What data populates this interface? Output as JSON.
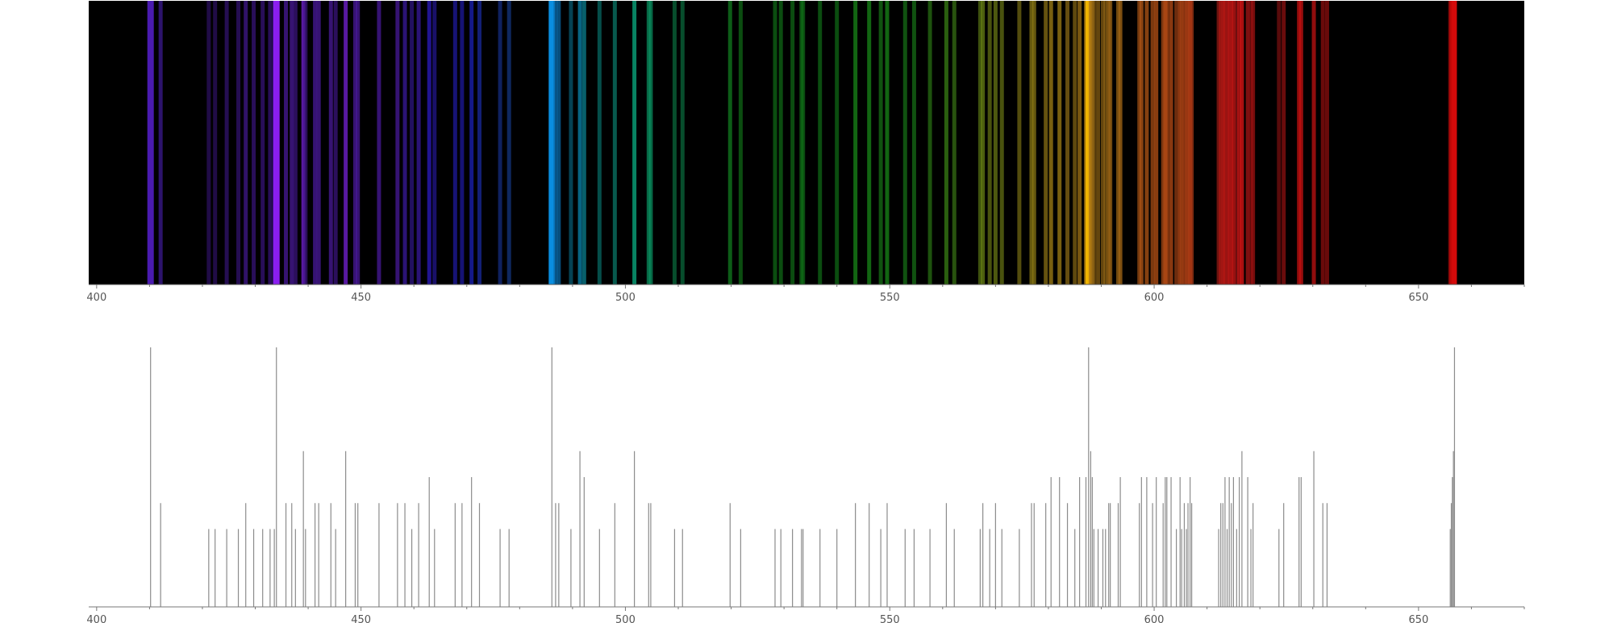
{
  "chart_data": [
    {
      "type": "spectrum",
      "title": "",
      "xlabel": "",
      "ylabel": "",
      "xlim": [
        398.5,
        670
      ],
      "background": "#000000",
      "x_ticks": [
        400,
        450,
        500,
        550,
        600,
        650
      ],
      "lines": [
        {
          "wl": 410.2,
          "i": 1.0,
          "color": "#4a1bb0",
          "w": 1.6
        },
        {
          "wl": 412.1,
          "i": 0.4,
          "color": "#3d1a94",
          "w": 1
        },
        {
          "wl": 421.2,
          "i": 0.3,
          "color": "#2e1166",
          "w": 1
        },
        {
          "wl": 422.4,
          "i": 0.3,
          "color": "#2e1166",
          "w": 1
        },
        {
          "wl": 424.6,
          "i": 0.3,
          "color": "#361478",
          "w": 1
        },
        {
          "wl": 426.8,
          "i": 0.3,
          "color": "#361478",
          "w": 1
        },
        {
          "wl": 428.2,
          "i": 0.4,
          "color": "#42188e",
          "w": 1
        },
        {
          "wl": 429.7,
          "i": 0.3,
          "color": "#3b1582",
          "w": 1
        },
        {
          "wl": 431.4,
          "i": 0.3,
          "color": "#3b1582",
          "w": 1
        },
        {
          "wl": 432.8,
          "i": 0.3,
          "color": "#3b1582",
          "w": 1
        },
        {
          "wl": 433.6,
          "i": 0.3,
          "color": "#3b1582",
          "w": 1
        },
        {
          "wl": 434.0,
          "i": 1.0,
          "color": "#8a1ef0",
          "w": 1.6
        },
        {
          "wl": 435.8,
          "i": 0.4,
          "color": "#4a1a9c",
          "w": 1
        },
        {
          "wl": 436.9,
          "i": 0.4,
          "color": "#4a1a9c",
          "w": 1
        },
        {
          "wl": 437.6,
          "i": 0.3,
          "color": "#3f1686",
          "w": 1
        },
        {
          "wl": 439.1,
          "i": 0.6,
          "color": "#6a1fc4",
          "w": 1
        },
        {
          "wl": 439.5,
          "i": 0.3,
          "color": "#3f1686",
          "w": 1
        },
        {
          "wl": 441.3,
          "i": 0.4,
          "color": "#4a1a9c",
          "w": 1
        },
        {
          "wl": 442.0,
          "i": 0.4,
          "color": "#4a1a9c",
          "w": 1
        },
        {
          "wl": 444.3,
          "i": 0.4,
          "color": "#4a1a9c",
          "w": 1
        },
        {
          "wl": 445.2,
          "i": 0.3,
          "color": "#3f1686",
          "w": 1
        },
        {
          "wl": 447.1,
          "i": 0.6,
          "color": "#6a1fc4",
          "w": 1
        },
        {
          "wl": 448.9,
          "i": 0.4,
          "color": "#4a1a9c",
          "w": 1
        },
        {
          "wl": 449.4,
          "i": 0.4,
          "color": "#4a1a9c",
          "w": 1
        },
        {
          "wl": 453.4,
          "i": 0.4,
          "color": "#4a1a9c",
          "w": 1
        },
        {
          "wl": 456.9,
          "i": 0.4,
          "color": "#4a1a9c",
          "w": 1
        },
        {
          "wl": 458.3,
          "i": 0.4,
          "color": "#3a1aa0",
          "w": 1
        },
        {
          "wl": 459.6,
          "i": 0.3,
          "color": "#32188c",
          "w": 1
        },
        {
          "wl": 460.9,
          "i": 0.4,
          "color": "#3a1aa0",
          "w": 1
        },
        {
          "wl": 462.9,
          "i": 0.5,
          "color": "#2a1ab8",
          "w": 1
        },
        {
          "wl": 463.9,
          "i": 0.3,
          "color": "#241896",
          "w": 1
        },
        {
          "wl": 467.8,
          "i": 0.4,
          "color": "#1e1aa0",
          "w": 1
        },
        {
          "wl": 469.1,
          "i": 0.4,
          "color": "#1e1aa0",
          "w": 1
        },
        {
          "wl": 470.9,
          "i": 0.5,
          "color": "#1a20b0",
          "w": 1
        },
        {
          "wl": 472.4,
          "i": 0.4,
          "color": "#1a2aa0",
          "w": 1
        },
        {
          "wl": 476.3,
          "i": 0.3,
          "color": "#16308a",
          "w": 1
        },
        {
          "wl": 478.0,
          "i": 0.3,
          "color": "#163a8a",
          "w": 1
        },
        {
          "wl": 486.1,
          "i": 1.0,
          "color": "#0a8ee0",
          "w": 1.6
        },
        {
          "wl": 486.8,
          "i": 0.4,
          "color": "#0a6aa8",
          "w": 1
        },
        {
          "wl": 487.4,
          "i": 0.4,
          "color": "#0a6aa8",
          "w": 1
        },
        {
          "wl": 489.7,
          "i": 0.3,
          "color": "#08607a",
          "w": 1
        },
        {
          "wl": 491.4,
          "i": 0.6,
          "color": "#0a7aa0",
          "w": 1
        },
        {
          "wl": 492.2,
          "i": 0.5,
          "color": "#0a7a8a",
          "w": 1
        },
        {
          "wl": 495.1,
          "i": 0.3,
          "color": "#08706a",
          "w": 1
        },
        {
          "wl": 498.0,
          "i": 0.4,
          "color": "#0a7a6a",
          "w": 1
        },
        {
          "wl": 501.7,
          "i": 0.6,
          "color": "#0aa078",
          "w": 1
        },
        {
          "wl": 504.4,
          "i": 0.4,
          "color": "#0a9060",
          "w": 1
        },
        {
          "wl": 504.8,
          "i": 0.4,
          "color": "#0a9060",
          "w": 1
        },
        {
          "wl": 509.3,
          "i": 0.3,
          "color": "#0a7040",
          "w": 1
        },
        {
          "wl": 510.8,
          "i": 0.3,
          "color": "#0a7040",
          "w": 1
        },
        {
          "wl": 519.8,
          "i": 0.4,
          "color": "#128020",
          "w": 1
        },
        {
          "wl": 521.8,
          "i": 0.3,
          "color": "#107018",
          "w": 1
        },
        {
          "wl": 528.3,
          "i": 0.3,
          "color": "#107018",
          "w": 1
        },
        {
          "wl": 529.4,
          "i": 0.3,
          "color": "#107018",
          "w": 1
        },
        {
          "wl": 531.6,
          "i": 0.3,
          "color": "#107018",
          "w": 1
        },
        {
          "wl": 533.3,
          "i": 0.3,
          "color": "#107018",
          "w": 1
        },
        {
          "wl": 533.6,
          "i": 0.3,
          "color": "#107018",
          "w": 1
        },
        {
          "wl": 536.8,
          "i": 0.3,
          "color": "#107018",
          "w": 1
        },
        {
          "wl": 540.0,
          "i": 0.3,
          "color": "#107018",
          "w": 1
        },
        {
          "wl": 543.5,
          "i": 0.4,
          "color": "#188a18",
          "w": 1
        },
        {
          "wl": 546.1,
          "i": 0.4,
          "color": "#188a18",
          "w": 1
        },
        {
          "wl": 548.3,
          "i": 0.3,
          "color": "#187818",
          "w": 1
        },
        {
          "wl": 549.5,
          "i": 0.4,
          "color": "#188a18",
          "w": 1
        },
        {
          "wl": 552.9,
          "i": 0.3,
          "color": "#187818",
          "w": 1
        },
        {
          "wl": 554.6,
          "i": 0.3,
          "color": "#187818",
          "w": 1
        },
        {
          "wl": 557.6,
          "i": 0.3,
          "color": "#2a7814",
          "w": 1
        },
        {
          "wl": 560.7,
          "i": 0.4,
          "color": "#3a8214",
          "w": 1
        },
        {
          "wl": 562.2,
          "i": 0.3,
          "color": "#3a7814",
          "w": 1
        },
        {
          "wl": 567.1,
          "i": 0.3,
          "color": "#5a7814",
          "w": 1
        },
        {
          "wl": 567.6,
          "i": 0.4,
          "color": "#6a8214",
          "w": 1
        },
        {
          "wl": 568.9,
          "i": 0.3,
          "color": "#6a7814",
          "w": 1
        },
        {
          "wl": 570.0,
          "i": 0.4,
          "color": "#6a7814",
          "w": 1
        },
        {
          "wl": 571.2,
          "i": 0.3,
          "color": "#6a7814",
          "w": 1
        },
        {
          "wl": 574.5,
          "i": 0.3,
          "color": "#7a7014",
          "w": 1
        },
        {
          "wl": 576.8,
          "i": 0.4,
          "color": "#8a7814",
          "w": 1
        },
        {
          "wl": 577.3,
          "i": 0.4,
          "color": "#8a7814",
          "w": 1
        },
        {
          "wl": 579.5,
          "i": 0.4,
          "color": "#8a7014",
          "w": 1
        },
        {
          "wl": 580.5,
          "i": 0.5,
          "color": "#9a7a14",
          "w": 1
        },
        {
          "wl": 582.1,
          "i": 0.5,
          "color": "#9a7a14",
          "w": 1
        },
        {
          "wl": 583.6,
          "i": 0.4,
          "color": "#8a6a14",
          "w": 1
        },
        {
          "wl": 585.0,
          "i": 0.3,
          "color": "#8a6a14",
          "w": 1
        },
        {
          "wl": 585.9,
          "i": 0.5,
          "color": "#9a7014",
          "w": 1
        },
        {
          "wl": 587.1,
          "i": 0.5,
          "color": "#a07214",
          "w": 1
        },
        {
          "wl": 587.6,
          "i": 1.0,
          "color": "#f0b400",
          "w": 1.6
        },
        {
          "wl": 588.0,
          "i": 0.6,
          "color": "#b07814",
          "w": 1
        },
        {
          "wl": 588.3,
          "i": 0.5,
          "color": "#a07014",
          "w": 1
        },
        {
          "wl": 588.6,
          "i": 0.3,
          "color": "#906414",
          "w": 1
        },
        {
          "wl": 589.4,
          "i": 0.3,
          "color": "#906414",
          "w": 1
        },
        {
          "wl": 590.3,
          "i": 0.3,
          "color": "#906414",
          "w": 1
        },
        {
          "wl": 590.8,
          "i": 0.3,
          "color": "#906414",
          "w": 1
        },
        {
          "wl": 591.4,
          "i": 0.4,
          "color": "#9a6414",
          "w": 1
        },
        {
          "wl": 591.7,
          "i": 0.4,
          "color": "#9a6414",
          "w": 1
        },
        {
          "wl": 593.2,
          "i": 0.4,
          "color": "#9a6414",
          "w": 1
        },
        {
          "wl": 593.6,
          "i": 0.5,
          "color": "#a06414",
          "w": 1
        },
        {
          "wl": 597.2,
          "i": 0.4,
          "color": "#a05014",
          "w": 1
        },
        {
          "wl": 597.6,
          "i": 0.5,
          "color": "#aa5214",
          "w": 1
        },
        {
          "wl": 598.6,
          "i": 0.5,
          "color": "#aa5214",
          "w": 1
        },
        {
          "wl": 599.7,
          "i": 0.4,
          "color": "#aa4e14",
          "w": 1
        },
        {
          "wl": 600.4,
          "i": 0.5,
          "color": "#b04e14",
          "w": 1
        },
        {
          "wl": 601.7,
          "i": 0.4,
          "color": "#aa4a14",
          "w": 1
        },
        {
          "wl": 602.1,
          "i": 0.5,
          "color": "#b04a14",
          "w": 1
        },
        {
          "wl": 602.4,
          "i": 0.5,
          "color": "#b04a14",
          "w": 1
        },
        {
          "wl": 603.2,
          "i": 0.5,
          "color": "#b04814",
          "w": 1
        },
        {
          "wl": 604.2,
          "i": 0.3,
          "color": "#a04014",
          "w": 1
        },
        {
          "wl": 604.9,
          "i": 0.5,
          "color": "#b04414",
          "w": 1
        },
        {
          "wl": 605.2,
          "i": 0.3,
          "color": "#a04014",
          "w": 1
        },
        {
          "wl": 605.7,
          "i": 0.4,
          "color": "#aa4014",
          "w": 1
        },
        {
          "wl": 606.1,
          "i": 0.3,
          "color": "#a03c14",
          "w": 1
        },
        {
          "wl": 606.4,
          "i": 0.4,
          "color": "#aa3c14",
          "w": 1
        },
        {
          "wl": 606.8,
          "i": 0.5,
          "color": "#b03c14",
          "w": 1
        },
        {
          "wl": 607.1,
          "i": 0.4,
          "color": "#aa3814",
          "w": 1
        },
        {
          "wl": 612.2,
          "i": 0.3,
          "color": "#a01a14",
          "w": 1
        },
        {
          "wl": 612.6,
          "i": 0.4,
          "color": "#b01814",
          "w": 1
        },
        {
          "wl": 613.0,
          "i": 0.4,
          "color": "#b01814",
          "w": 1
        },
        {
          "wl": 613.4,
          "i": 0.5,
          "color": "#c01814",
          "w": 1
        },
        {
          "wl": 613.8,
          "i": 0.3,
          "color": "#a01614",
          "w": 1
        },
        {
          "wl": 614.2,
          "i": 0.5,
          "color": "#c01614",
          "w": 1
        },
        {
          "wl": 614.6,
          "i": 0.4,
          "color": "#b01614",
          "w": 1
        },
        {
          "wl": 615.0,
          "i": 0.5,
          "color": "#c01614",
          "w": 1
        },
        {
          "wl": 615.6,
          "i": 0.3,
          "color": "#a01414",
          "w": 1
        },
        {
          "wl": 616.1,
          "i": 0.5,
          "color": "#c01414",
          "w": 1
        },
        {
          "wl": 616.6,
          "i": 0.6,
          "color": "#d01414",
          "w": 1
        },
        {
          "wl": 617.7,
          "i": 0.5,
          "color": "#a01414",
          "w": 1
        },
        {
          "wl": 618.3,
          "i": 0.3,
          "color": "#901212",
          "w": 1
        },
        {
          "wl": 618.7,
          "i": 0.4,
          "color": "#a01212",
          "w": 1
        },
        {
          "wl": 623.6,
          "i": 0.3,
          "color": "#801010",
          "w": 1
        },
        {
          "wl": 624.5,
          "i": 0.4,
          "color": "#901010",
          "w": 1
        },
        {
          "wl": 627.4,
          "i": 0.5,
          "color": "#c01010",
          "w": 1
        },
        {
          "wl": 627.8,
          "i": 0.5,
          "color": "#c01010",
          "w": 1
        },
        {
          "wl": 630.2,
          "i": 0.6,
          "color": "#b01010",
          "w": 1
        },
        {
          "wl": 631.9,
          "i": 0.4,
          "color": "#900e0e",
          "w": 1
        },
        {
          "wl": 632.7,
          "i": 0.4,
          "color": "#900e0e",
          "w": 1
        },
        {
          "wl": 656.0,
          "i": 0.3,
          "color": "#b00a0a",
          "w": 1
        },
        {
          "wl": 656.2,
          "i": 0.4,
          "color": "#c00a0a",
          "w": 1
        },
        {
          "wl": 656.4,
          "i": 0.5,
          "color": "#c80a0a",
          "w": 1
        },
        {
          "wl": 656.6,
          "i": 0.6,
          "color": "#d00a0a",
          "w": 1
        },
        {
          "wl": 656.8,
          "i": 1.0,
          "color": "#d40a0a",
          "w": 1.2
        }
      ]
    },
    {
      "type": "stick",
      "title": "",
      "xlabel": "",
      "ylabel": "",
      "xlim": [
        398.5,
        670
      ],
      "line_color": "#8c8c8c",
      "x_ticks": [
        400,
        450,
        500,
        550,
        600,
        650
      ]
    }
  ]
}
